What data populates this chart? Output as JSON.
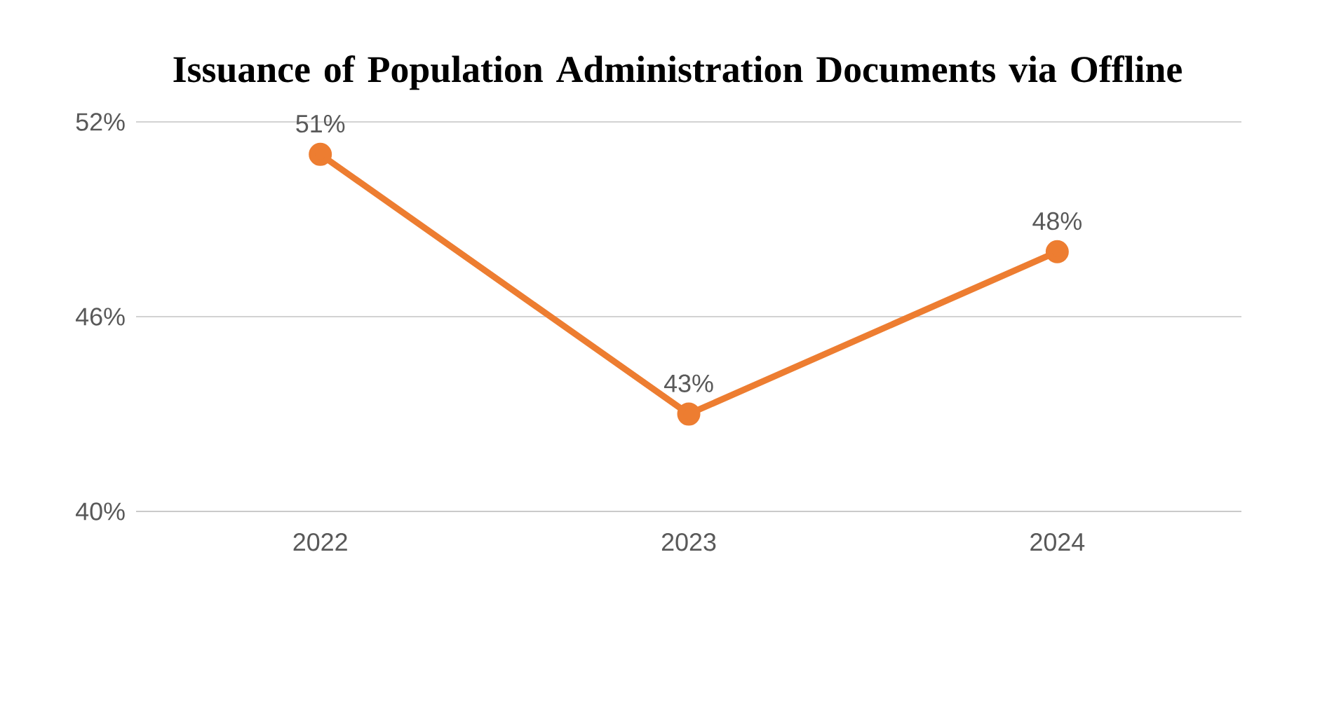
{
  "chart_data": {
    "type": "line",
    "title": "Issuance of Population Administration Documents via Offline",
    "categories": [
      "2022",
      "2023",
      "2024"
    ],
    "series": [
      {
        "color": "#ed7d31",
        "values": [
          51,
          43,
          48
        ],
        "value_labels": [
          "51%",
          "43%",
          "48%"
        ]
      }
    ],
    "ylim": [
      40,
      52
    ],
    "yticks": [
      {
        "value": 40,
        "label": "40%"
      },
      {
        "value": 46,
        "label": "46%"
      },
      {
        "value": 52,
        "label": "52%"
      }
    ],
    "grid": "y",
    "marker": "circle",
    "line_style": "solid"
  }
}
